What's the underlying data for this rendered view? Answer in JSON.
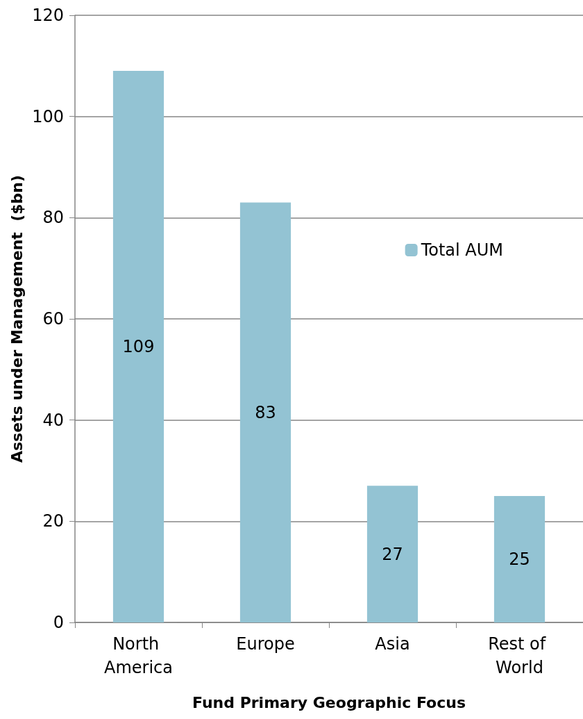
{
  "chart_data": {
    "type": "bar",
    "xlabel": "Fund Primary Geographic Focus",
    "ylabel": "Assets under Management  ($bn)",
    "categories": [
      "North America",
      "Europe",
      "Asia",
      "Rest of World"
    ],
    "series": [
      {
        "name": "Total AUM",
        "color": "#93c3d3",
        "values": [
          109,
          83,
          27,
          25
        ]
      }
    ],
    "ylim": [
      0,
      120
    ],
    "yticks": [
      0,
      20,
      40,
      60,
      80,
      100,
      120
    ],
    "grid": "y",
    "legend": "right",
    "data_labels": true
  }
}
